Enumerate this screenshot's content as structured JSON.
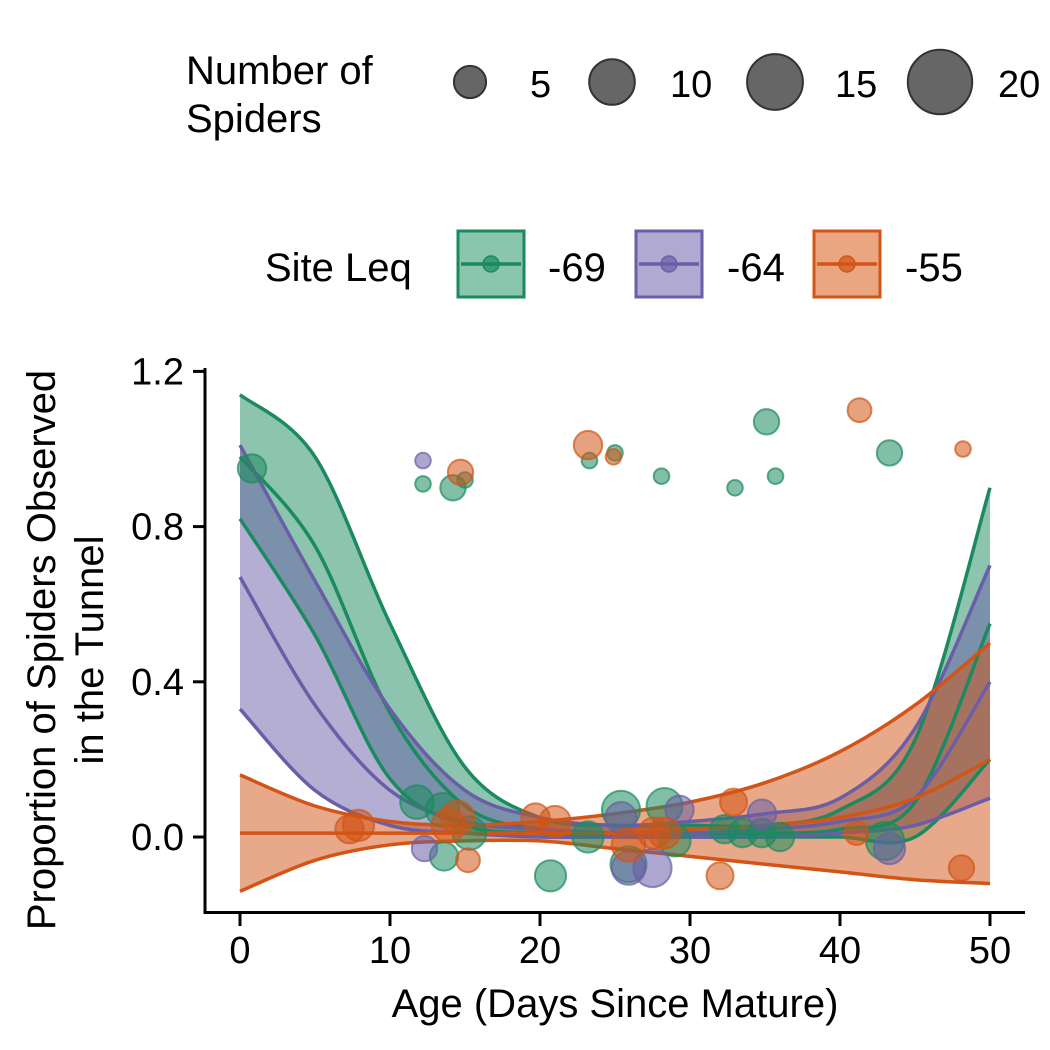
{
  "chart_data": {
    "type": "scatter",
    "title": "",
    "xlabel": "Age (Days Since Mature)",
    "ylabel_line1": "Proportion of Spiders Observed",
    "ylabel_line2": "in the Tunnel",
    "xlim": [
      -2.5,
      53
    ],
    "ylim": [
      -0.2,
      1.2
    ],
    "x_ticks": [
      0,
      10,
      20,
      30,
      40,
      50
    ],
    "x_tick_labels": [
      "0",
      "10",
      "20",
      "30",
      "40",
      "50"
    ],
    "y_ticks": [
      0.0,
      0.4,
      0.8,
      1.2
    ],
    "y_tick_labels": [
      "0.0",
      "0.4",
      "0.8",
      "1.2"
    ],
    "grid": false,
    "legend_size": {
      "title_line1": "Number of",
      "title_line2": "Spiders",
      "placement": "top",
      "entries": [
        {
          "label": "5",
          "size": 5
        },
        {
          "label": "10",
          "size": 10
        },
        {
          "label": "15",
          "size": 15
        },
        {
          "label": "20",
          "size": 20
        }
      ]
    },
    "legend_site": {
      "title": "Site Leq",
      "placement": "top",
      "entries": [
        {
          "label": "-69",
          "color": "#1b8a5f",
          "fill": "#8ac5ad"
        },
        {
          "label": "-64",
          "color": "#6a5ea7",
          "fill": "#b0aad3"
        },
        {
          "label": "-55",
          "color": "#d25416",
          "fill": "#eaa681"
        }
      ]
    },
    "series": [
      {
        "color": "#1b8a5f",
        "fill": "#1b8a5f",
        "x": [
          0,
          5,
          10,
          15,
          20,
          25,
          30,
          35,
          40,
          45,
          50
        ],
        "fit": [
          0.98,
          0.75,
          0.32,
          0.08,
          0.02,
          0.01,
          0.01,
          0.01,
          0.02,
          0.09,
          0.55
        ],
        "upper": [
          1.14,
          0.98,
          0.55,
          0.18,
          0.05,
          0.03,
          0.03,
          0.03,
          0.07,
          0.25,
          0.9
        ],
        "lower": [
          0.82,
          0.52,
          0.15,
          0.03,
          0.01,
          0.0,
          0.0,
          0.0,
          0.0,
          0.0,
          0.2
        ],
        "points": [
          {
            "x": 0.8,
            "y": 0.95,
            "n": 10
          },
          {
            "x": 12.2,
            "y": 0.91,
            "n": 3
          },
          {
            "x": 14.2,
            "y": 0.9,
            "n": 8
          },
          {
            "x": 15.0,
            "y": 0.92,
            "n": 3
          },
          {
            "x": 23.3,
            "y": 0.97,
            "n": 3
          },
          {
            "x": 25.0,
            "y": 0.99,
            "n": 3
          },
          {
            "x": 28.1,
            "y": 0.93,
            "n": 3
          },
          {
            "x": 33.0,
            "y": 0.9,
            "n": 3
          },
          {
            "x": 35.1,
            "y": 1.07,
            "n": 8
          },
          {
            "x": 35.7,
            "y": 0.93,
            "n": 3
          },
          {
            "x": 43.3,
            "y": 0.99,
            "n": 8
          },
          {
            "x": 11.8,
            "y": 0.09,
            "n": 14
          },
          {
            "x": 13.5,
            "y": 0.07,
            "n": 14
          },
          {
            "x": 13.6,
            "y": -0.05,
            "n": 10
          },
          {
            "x": 15.3,
            "y": 0.01,
            "n": 14
          },
          {
            "x": 20.7,
            "y": -0.1,
            "n": 12
          },
          {
            "x": 23.2,
            "y": 0.0,
            "n": 12
          },
          {
            "x": 25.4,
            "y": 0.07,
            "n": 18
          },
          {
            "x": 25.9,
            "y": -0.07,
            "n": 16
          },
          {
            "x": 28.3,
            "y": 0.08,
            "n": 16
          },
          {
            "x": 29.0,
            "y": -0.01,
            "n": 12
          },
          {
            "x": 32.3,
            "y": 0.02,
            "n": 10
          },
          {
            "x": 33.5,
            "y": 0.01,
            "n": 10
          },
          {
            "x": 34.8,
            "y": 0.01,
            "n": 10
          },
          {
            "x": 36.0,
            "y": 0.0,
            "n": 10
          },
          {
            "x": 43.0,
            "y": -0.01,
            "n": 18
          }
        ]
      },
      {
        "color": "#6a5ea7",
        "fill": "#6a5ea7",
        "x": [
          0,
          5,
          10,
          15,
          20,
          25,
          30,
          35,
          40,
          45,
          50
        ],
        "fit": [
          0.67,
          0.34,
          0.12,
          0.04,
          0.02,
          0.01,
          0.01,
          0.02,
          0.04,
          0.1,
          0.4
        ],
        "upper": [
          1.01,
          0.66,
          0.33,
          0.12,
          0.05,
          0.03,
          0.04,
          0.06,
          0.1,
          0.28,
          0.7
        ],
        "lower": [
          0.33,
          0.12,
          0.03,
          0.01,
          0.0,
          0.0,
          0.0,
          0.0,
          0.01,
          0.03,
          0.1
        ],
        "points": [
          {
            "x": 12.2,
            "y": 0.97,
            "n": 3
          },
          {
            "x": 12.3,
            "y": -0.03,
            "n": 8
          },
          {
            "x": 25.4,
            "y": 0.05,
            "n": 12
          },
          {
            "x": 25.9,
            "y": -0.08,
            "n": 14
          },
          {
            "x": 27.5,
            "y": -0.08,
            "n": 18
          },
          {
            "x": 29.3,
            "y": 0.07,
            "n": 10
          },
          {
            "x": 34.8,
            "y": 0.06,
            "n": 10
          },
          {
            "x": 43.3,
            "y": -0.03,
            "n": 12
          }
        ]
      },
      {
        "color": "#d25416",
        "fill": "#d25416",
        "x": [
          0,
          5,
          10,
          15,
          20,
          25,
          30,
          35,
          40,
          45,
          50
        ],
        "fit": [
          0.01,
          0.01,
          0.01,
          0.01,
          0.01,
          0.01,
          0.02,
          0.03,
          0.05,
          0.1,
          0.2
        ],
        "upper": [
          0.16,
          0.08,
          0.04,
          0.03,
          0.04,
          0.06,
          0.09,
          0.14,
          0.22,
          0.34,
          0.5
        ],
        "lower": [
          -0.14,
          -0.06,
          -0.02,
          -0.01,
          -0.01,
          -0.03,
          -0.05,
          -0.07,
          -0.09,
          -0.11,
          -0.12
        ],
        "points": [
          {
            "x": 14.7,
            "y": 0.94,
            "n": 8
          },
          {
            "x": 23.2,
            "y": 1.01,
            "n": 10
          },
          {
            "x": 24.9,
            "y": 0.98,
            "n": 3
          },
          {
            "x": 41.3,
            "y": 1.1,
            "n": 7
          },
          {
            "x": 48.2,
            "y": 1.0,
            "n": 3
          },
          {
            "x": 7.3,
            "y": 0.02,
            "n": 10
          },
          {
            "x": 7.9,
            "y": 0.03,
            "n": 12
          },
          {
            "x": 13.9,
            "y": 0.03,
            "n": 14
          },
          {
            "x": 14.5,
            "y": 0.05,
            "n": 14
          },
          {
            "x": 15.2,
            "y": -0.06,
            "n": 7
          },
          {
            "x": 19.7,
            "y": 0.05,
            "n": 10
          },
          {
            "x": 21.0,
            "y": 0.04,
            "n": 12
          },
          {
            "x": 25.9,
            "y": -0.02,
            "n": 14
          },
          {
            "x": 27.6,
            "y": 0.01,
            "n": 12
          },
          {
            "x": 28.3,
            "y": 0.01,
            "n": 12
          },
          {
            "x": 32.0,
            "y": -0.1,
            "n": 9
          },
          {
            "x": 32.9,
            "y": 0.09,
            "n": 9
          },
          {
            "x": 41.1,
            "y": 0.01,
            "n": 7
          },
          {
            "x": 48.1,
            "y": -0.08,
            "n": 8
          }
        ]
      }
    ]
  }
}
